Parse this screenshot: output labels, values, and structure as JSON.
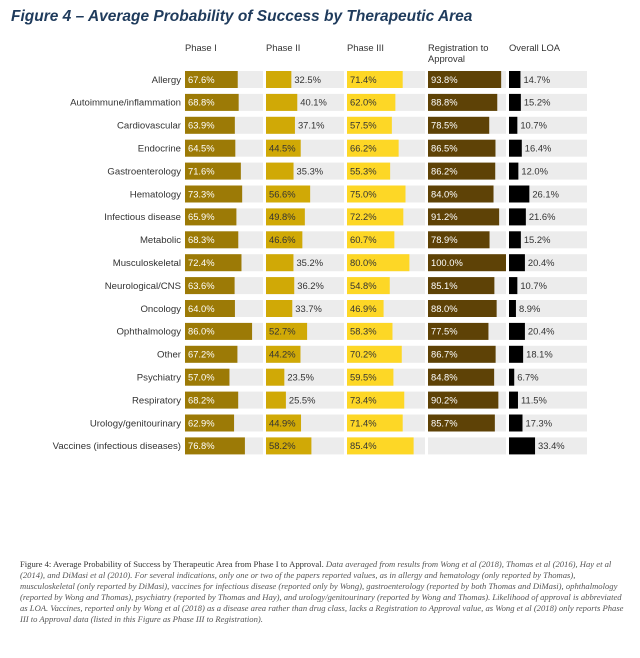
{
  "title": "Figure 4 – Average Probability of Success by Therapeutic Area",
  "chart_data": {
    "type": "bar",
    "title": "Figure 4 – Average Probability of Success by Therapeutic Area",
    "categories": [
      "Allergy",
      "Autoimmune/inflammation",
      "Cardiovascular",
      "Endocrine",
      "Gastroenterology",
      "Hematology",
      "Infectious disease",
      "Metabolic",
      "Musculoskeletal",
      "Neurological/CNS",
      "Oncology",
      "Ophthalmology",
      "Other",
      "Psychiatry",
      "Respiratory",
      "Urology/genitourinary",
      "Vaccines (infectious diseases)"
    ],
    "series": [
      {
        "name": "Phase I",
        "color": "#9c7a06",
        "values": [
          67.6,
          68.8,
          63.9,
          64.5,
          71.6,
          73.3,
          65.9,
          68.3,
          72.4,
          63.6,
          64.0,
          86.0,
          67.2,
          57.0,
          68.2,
          62.9,
          76.8
        ]
      },
      {
        "name": "Phase II",
        "color": "#d0a906",
        "values": [
          32.5,
          40.1,
          37.1,
          44.5,
          35.3,
          56.6,
          49.8,
          46.6,
          35.2,
          36.2,
          33.7,
          52.7,
          44.2,
          23.5,
          25.5,
          44.9,
          58.2
        ]
      },
      {
        "name": "Phase III",
        "color": "#fdd726",
        "values": [
          71.4,
          62.0,
          57.5,
          66.2,
          55.3,
          75.0,
          72.2,
          60.7,
          80.0,
          54.8,
          46.9,
          58.3,
          70.2,
          59.5,
          73.4,
          71.4,
          85.4
        ]
      },
      {
        "name": "Registration to Approval",
        "color": "#5e4206",
        "values": [
          93.8,
          88.8,
          78.5,
          86.5,
          86.2,
          84.0,
          91.2,
          78.9,
          100.0,
          85.1,
          88.0,
          77.5,
          86.7,
          84.8,
          90.2,
          85.7,
          null
        ]
      },
      {
        "name": "Overall LOA",
        "color": "#000000",
        "values": [
          14.7,
          15.2,
          10.7,
          16.4,
          12.0,
          26.1,
          21.6,
          15.2,
          20.4,
          10.7,
          8.9,
          20.4,
          18.1,
          6.7,
          11.5,
          17.3,
          33.4
        ]
      }
    ],
    "header_labels": [
      "Phase I",
      "Phase II",
      "Phase III",
      "Registration to\nApproval",
      "Overall LOA"
    ],
    "value_format": "percent, one decimal",
    "xlim": [
      0,
      100
    ],
    "track_color": "#ececec",
    "legend": "column headers",
    "grid": false
  },
  "caption": {
    "heading": "Figure 4: Average Probability of Success by Therapeutic Area from Phase I to Approval.",
    "body": "Data averaged from results from Wong et al (2018), Thomas et al (2016), Hay et al (2014), and DiMasi et al (2010). For several indications, only one or two of the papers reported values, as in allergy and hematology (only reported by Thomas), musculoskeletal (only reported by DiMasi), vaccines for infectious disease (reported only by Wong), gastroenterology (reported by both Thomas and DiMasi), ophthalmology (reported by Wong and Thomas), psychiatry (reported by Thomas and Hay), and urology/genitourinary (reported by Wong and Thomas). Likelihood of approval is abbreviated as LOA. Vaccines, reported only by Wong et al (2018) as a disease area rather than drug class, lacks a Registration to Approval value, as Wong et al (2018) only reports Phase III to Approval data (listed in this Figure as Phase III to Registration)."
  }
}
